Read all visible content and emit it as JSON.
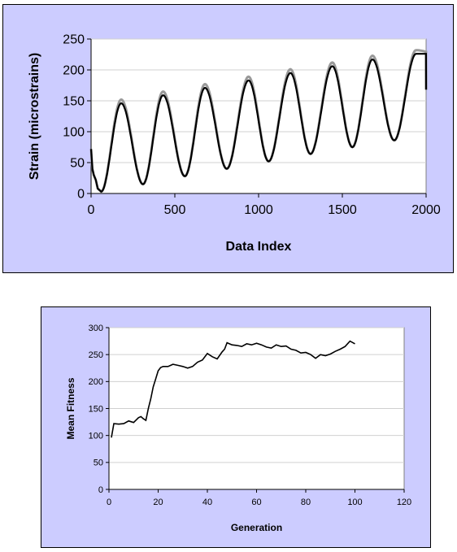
{
  "chart_data": [
    {
      "type": "line",
      "xlabel": "Data Index",
      "ylabel": "Strain (microstrains)",
      "xlim": [
        0,
        2000
      ],
      "ylim": [
        0,
        250
      ],
      "xticks": [
        0,
        500,
        1000,
        1500,
        2000
      ],
      "yticks": [
        0,
        50,
        100,
        150,
        200,
        250
      ],
      "grid": "horizontal",
      "series_colors": [
        "#999999",
        "#000000"
      ],
      "peaks": [
        {
          "x": 180,
          "y": 146
        },
        {
          "x": 430,
          "y": 159
        },
        {
          "x": 680,
          "y": 171
        },
        {
          "x": 940,
          "y": 183
        },
        {
          "x": 1190,
          "y": 195
        },
        {
          "x": 1440,
          "y": 206
        },
        {
          "x": 1680,
          "y": 217
        },
        {
          "x": 1940,
          "y": 226
        }
      ],
      "troughs": [
        {
          "x": 60,
          "y": 3
        },
        {
          "x": 310,
          "y": 15
        },
        {
          "x": 560,
          "y": 28
        },
        {
          "x": 810,
          "y": 40
        },
        {
          "x": 1060,
          "y": 52
        },
        {
          "x": 1310,
          "y": 64
        },
        {
          "x": 1560,
          "y": 75
        },
        {
          "x": 1810,
          "y": 86
        }
      ],
      "start": [
        {
          "x": 0,
          "y": 72
        },
        {
          "x": 8,
          "y": 40
        },
        {
          "x": 16,
          "y": 30
        },
        {
          "x": 28,
          "y": 22
        },
        {
          "x": 40,
          "y": 8
        }
      ],
      "end": {
        "x": 2000,
        "y": 168
      },
      "offset_series": {
        "name": "",
        "peak_offset": 6,
        "trough_offset": 0
      }
    },
    {
      "type": "line",
      "xlabel": "Generation",
      "ylabel": "Mean Fitness",
      "xlim": [
        0,
        120
      ],
      "ylim": [
        0,
        300
      ],
      "xticks": [
        0,
        20,
        40,
        60,
        80,
        100,
        120
      ],
      "yticks": [
        0,
        50,
        100,
        150,
        200,
        250,
        300
      ],
      "grid": "horizontal",
      "series": [
        {
          "name": "",
          "x": [
            1,
            2,
            4,
            6,
            8,
            10,
            12,
            13,
            14,
            15,
            16,
            17,
            18,
            19,
            20,
            21,
            22,
            24,
            26,
            28,
            30,
            32,
            34,
            36,
            38,
            40,
            42,
            44,
            46,
            47,
            48,
            50,
            52,
            54,
            56,
            58,
            60,
            62,
            64,
            66,
            68,
            70,
            72,
            74,
            76,
            78,
            80,
            82,
            84,
            86,
            88,
            90,
            92,
            94,
            96,
            98,
            100
          ],
          "values": [
            96,
            122,
            121,
            122,
            127,
            124,
            133,
            135,
            131,
            128,
            150,
            168,
            190,
            205,
            220,
            226,
            228,
            228,
            232,
            230,
            228,
            225,
            228,
            236,
            240,
            252,
            246,
            242,
            255,
            260,
            272,
            268,
            267,
            265,
            270,
            268,
            271,
            268,
            264,
            262,
            268,
            265,
            266,
            260,
            258,
            253,
            254,
            250,
            243,
            250,
            248,
            251,
            256,
            260,
            265,
            275,
            270
          ]
        }
      ]
    }
  ]
}
